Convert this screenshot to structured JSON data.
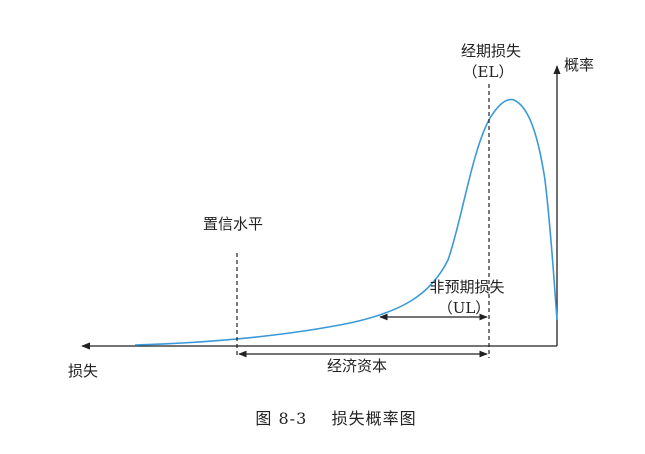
{
  "diagram": {
    "labels": {
      "expected_loss": "经期损失",
      "expected_loss_abbr": "（EL）",
      "probability_axis": "概率",
      "confidence_level": "置信水平",
      "unexpected_loss": "非预期损失",
      "unexpected_loss_abbr": "（UL）",
      "loss_axis": "损失",
      "economic_capital": "经济资本"
    },
    "caption": "图 8-3    损失概率图",
    "colors": {
      "curve": "#3a9ad9",
      "axis": "#222222",
      "marker": "#222222"
    }
  }
}
